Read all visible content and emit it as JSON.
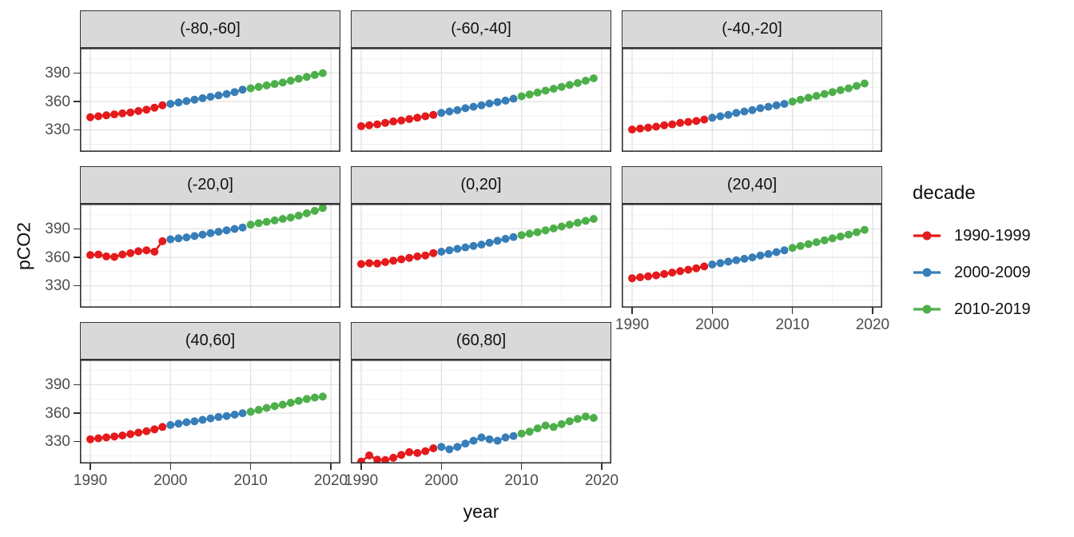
{
  "chart_data": {
    "type": "scatter",
    "title": "",
    "xlabel": "year",
    "ylabel": "pCO2",
    "x": [
      1990,
      1991,
      1992,
      1993,
      1994,
      1995,
      1996,
      1997,
      1998,
      1999,
      2000,
      2001,
      2002,
      2003,
      2004,
      2005,
      2006,
      2007,
      2008,
      2009,
      2010,
      2011,
      2012,
      2013,
      2014,
      2015,
      2016,
      2017,
      2018,
      2019
    ],
    "x_ticks": [
      1990,
      2000,
      2010,
      2020
    ],
    "y_ticks": [
      330,
      360,
      390
    ],
    "x_minor": [
      1995,
      2005,
      2015
    ],
    "y_minor": [
      315,
      345,
      375,
      405
    ],
    "xlim": [
      1988.7,
      2021.2
    ],
    "ylim": [
      307,
      416.5
    ],
    "grid": true,
    "colors": {
      "grid_major": "#E3E3E3",
      "grid_minor": "#F0F0F0",
      "panel_border": "#333333",
      "strip_fill": "#D9D9D9",
      "axis_text": "#4D4D4D"
    },
    "legend": {
      "title": "decade",
      "position": "right",
      "items": [
        {
          "label": "1990-1999",
          "color": "#E41A1C"
        },
        {
          "label": "2000-2009",
          "color": "#377EB8"
        },
        {
          "label": "2010-2019",
          "color": "#4DAF4A"
        }
      ]
    },
    "series_grouping": "Each facet has 30 yearly points 1990-2019; indices 0-9 decade 1990-1999 (red), 10-19 decade 2000-2009 (blue), 20-29 decade 2010-2019 (green).",
    "x_axis_panels": [
      {
        "row": 2,
        "col": 0
      },
      {
        "row": 2,
        "col": 1
      },
      {
        "row": 1,
        "col": 2
      }
    ],
    "facets": [
      {
        "label": "(-80,-60]",
        "values": [
          343.5,
          344.5,
          345.5,
          346.5,
          347.5,
          348.5,
          350,
          351.5,
          353.5,
          356,
          357.5,
          359,
          360.5,
          362,
          363.5,
          365,
          366.5,
          368,
          370,
          372.5,
          374,
          375.5,
          377,
          378.5,
          380,
          382,
          384,
          386,
          388,
          390
        ]
      },
      {
        "label": "(-60,-40]",
        "values": [
          334,
          335,
          336,
          337.5,
          339,
          340,
          341.5,
          343,
          344.5,
          346,
          348,
          349.5,
          351,
          353,
          354.5,
          356,
          358,
          359.5,
          361,
          363,
          365.5,
          367.5,
          369.5,
          371.5,
          373.5,
          375.5,
          377.5,
          379.5,
          382,
          384.5
        ]
      },
      {
        "label": "(-40,-20]",
        "values": [
          330.5,
          331.5,
          332.5,
          333.5,
          335,
          336,
          337.5,
          338.5,
          339.5,
          341,
          343,
          344.5,
          346,
          348,
          349.5,
          351,
          353,
          354.5,
          356,
          357.5,
          360,
          362,
          364,
          366,
          368,
          370,
          372,
          374,
          376.5,
          379
        ]
      },
      {
        "label": "(-20,0]",
        "values": [
          362.5,
          363,
          361,
          360.5,
          363,
          364.5,
          366.5,
          367.5,
          366,
          377,
          379,
          380,
          381,
          382.5,
          384,
          385.5,
          387,
          388.5,
          390,
          391.5,
          394.5,
          396,
          397.5,
          399,
          400.5,
          402,
          404,
          406.5,
          409,
          412
        ]
      },
      {
        "label": "(0,20]",
        "values": [
          353,
          354,
          353.5,
          355,
          356.5,
          358,
          359.5,
          361,
          362,
          364.5,
          366,
          367.5,
          369,
          370.5,
          372,
          373.5,
          375.5,
          377.5,
          379.5,
          381.5,
          383.5,
          385,
          386.5,
          388.5,
          390.5,
          392.5,
          394.5,
          396.5,
          398.5,
          400.5
        ]
      },
      {
        "label": "(20,40]",
        "values": [
          338,
          339,
          340,
          341,
          342.5,
          344,
          345.5,
          347,
          348.5,
          350.5,
          352.5,
          354,
          355.5,
          357,
          358.5,
          360,
          362,
          363.5,
          365.5,
          367.5,
          370,
          372,
          374,
          376,
          378,
          380,
          382,
          384,
          386.5,
          389
        ]
      },
      {
        "label": "(40,60]",
        "values": [
          332.5,
          333.5,
          334.5,
          335.5,
          336.5,
          338,
          339.5,
          341,
          343,
          345.5,
          347.5,
          349,
          350.5,
          351.5,
          353,
          354.5,
          356,
          357,
          358.5,
          360,
          361.5,
          363.5,
          365.5,
          367.5,
          369,
          371,
          373,
          375,
          376.5,
          377.5
        ]
      },
      {
        "label": "(60,80]",
        "values": [
          309,
          315.5,
          311,
          310.5,
          313,
          316,
          319,
          318,
          320,
          323,
          324.5,
          322,
          324.5,
          328,
          331,
          334.5,
          332.5,
          331,
          334.5,
          336,
          338.5,
          340.5,
          344,
          347,
          345.5,
          348.5,
          351.5,
          354,
          356.5,
          355
        ]
      }
    ]
  }
}
